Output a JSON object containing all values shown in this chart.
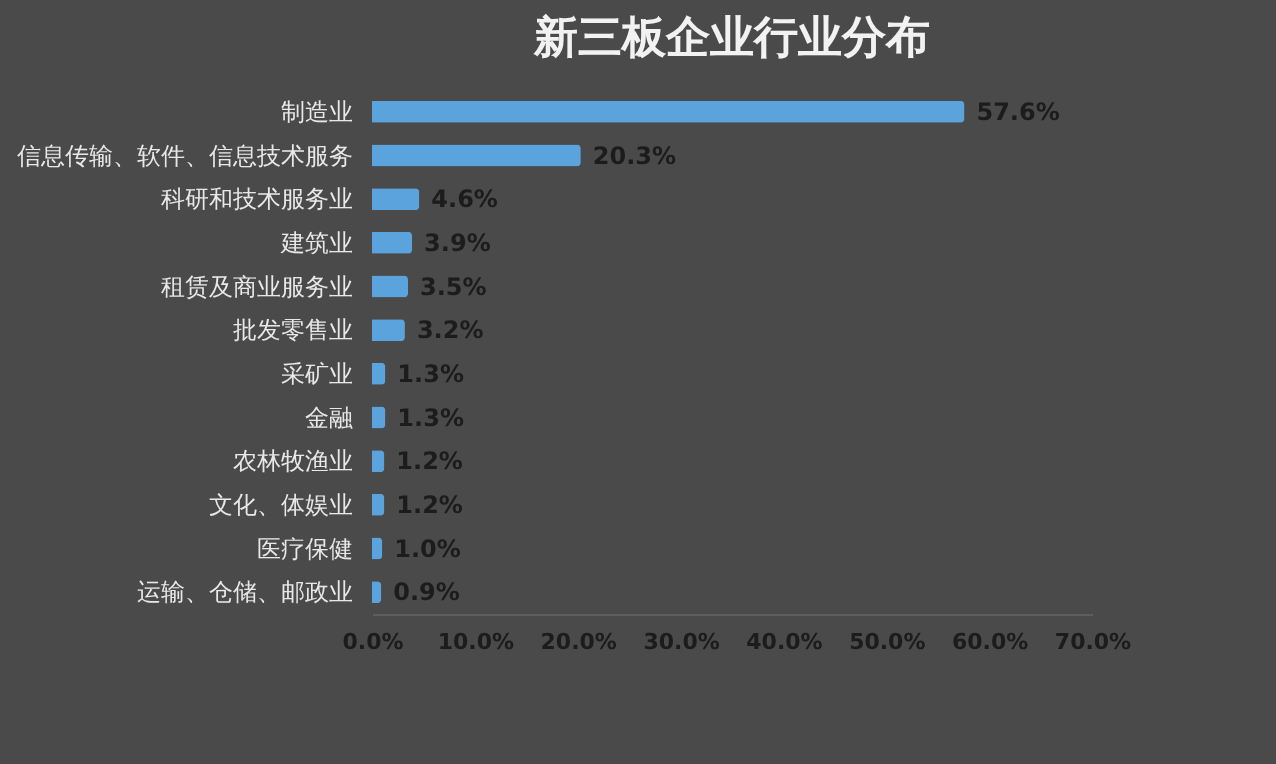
{
  "chart_data": {
    "type": "bar",
    "orientation": "horizontal",
    "title": "新三板企业行业分布",
    "categories": [
      "制造业",
      "信息传输、软件、信息技术服务",
      "科研和技术服务业",
      "建筑业",
      "租赁及商业服务业",
      "批发零售业",
      "采矿业",
      "金融",
      "农林牧渔业",
      "文化、体娱业",
      "医疗保健",
      "运输、仓储、邮政业"
    ],
    "values": [
      57.6,
      20.3,
      4.6,
      3.9,
      3.5,
      3.2,
      1.3,
      1.3,
      1.2,
      1.2,
      1.0,
      0.9
    ],
    "value_labels": [
      "57.6%",
      "20.3%",
      "4.6%",
      "3.9%",
      "3.5%",
      "3.2%",
      "1.3%",
      "1.3%",
      "1.2%",
      "1.2%",
      "1.0%",
      "0.9%"
    ],
    "color": "#5ba3dc",
    "xlim": [
      0,
      70
    ],
    "xticks": [
      {
        "value": 0,
        "label": "0.0%"
      },
      {
        "value": 10,
        "label": "10.0%"
      },
      {
        "value": 20,
        "label": "20.0%"
      },
      {
        "value": 30,
        "label": "30.0%"
      },
      {
        "value": 40,
        "label": "40.0%"
      },
      {
        "value": 50,
        "label": "50.0%"
      },
      {
        "value": 60,
        "label": "60.0%"
      },
      {
        "value": 70,
        "label": "70.0%"
      }
    ],
    "grid": false
  }
}
